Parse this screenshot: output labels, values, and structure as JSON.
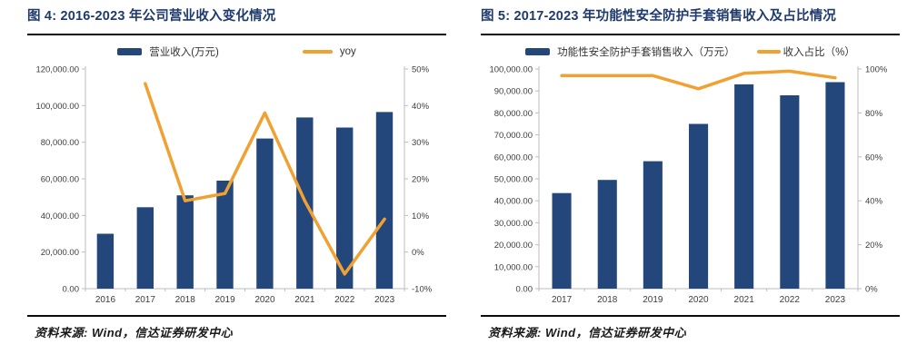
{
  "colors": {
    "bar": "#24477b",
    "line": "#f0a132",
    "title_text": "#1f3a6c",
    "axis": "#bdbdbd",
    "tick_text": "#3d3d3d",
    "rule": "#0c0c0c"
  },
  "chart_data": [
    {
      "type": "bar+line",
      "title": "图 4: 2016-2023 年公司营业收入变化情况",
      "source": "资料来源: Wind，信达证券研发中心",
      "categories": [
        "2016",
        "2017",
        "2018",
        "2019",
        "2020",
        "2021",
        "2022",
        "2023"
      ],
      "series": [
        {
          "name": "营业收入(万元)",
          "type": "bar",
          "axis": "left",
          "values": [
            30000,
            44500,
            51000,
            59000,
            82000,
            93500,
            88000,
            96500
          ]
        },
        {
          "name": "yoy",
          "type": "line",
          "axis": "right",
          "unit": "%",
          "values": [
            null,
            46,
            14,
            16,
            38,
            14,
            -6,
            9
          ]
        }
      ],
      "left_axis": {
        "min": 0,
        "max": 120000,
        "step": 20000,
        "labels": [
          "0.00",
          "20,000.00",
          "40,000.00",
          "60,000.00",
          "80,000.00",
          "100,000.00",
          "120,000.00"
        ]
      },
      "right_axis": {
        "min": -10,
        "max": 50,
        "step": 10,
        "labels": [
          "-10%",
          "0%",
          "10%",
          "20%",
          "30%",
          "40%",
          "50%"
        ]
      },
      "grid": false,
      "legend_position": "top"
    },
    {
      "type": "bar+line",
      "title": "图 5: 2017-2023 年功能性安全防护手套销售收入及占比情况",
      "source": "资料来源: Wind，信达证券研发中心",
      "categories": [
        "2017",
        "2018",
        "2019",
        "2020",
        "2021",
        "2022",
        "2023"
      ],
      "series": [
        {
          "name": "功能性安全防护手套销售收入（万元）",
          "type": "bar",
          "axis": "left",
          "values": [
            43500,
            49500,
            58000,
            75000,
            93000,
            88000,
            94000
          ]
        },
        {
          "name": "收入占比（%）",
          "type": "line",
          "axis": "right",
          "unit": "%",
          "values": [
            97,
            97,
            97,
            91,
            98,
            99,
            96
          ]
        }
      ],
      "left_axis": {
        "min": 0,
        "max": 100000,
        "step": 10000,
        "labels": [
          "0.00",
          "10,000.00",
          "20,000.00",
          "30,000.00",
          "40,000.00",
          "50,000.00",
          "60,000.00",
          "70,000.00",
          "80,000.00",
          "90,000.00",
          "100,000.00"
        ]
      },
      "right_axis": {
        "min": 0,
        "max": 100,
        "step": 20,
        "labels": [
          "0%",
          "20%",
          "40%",
          "60%",
          "80%",
          "100%"
        ]
      },
      "grid": false,
      "legend_position": "top"
    }
  ]
}
